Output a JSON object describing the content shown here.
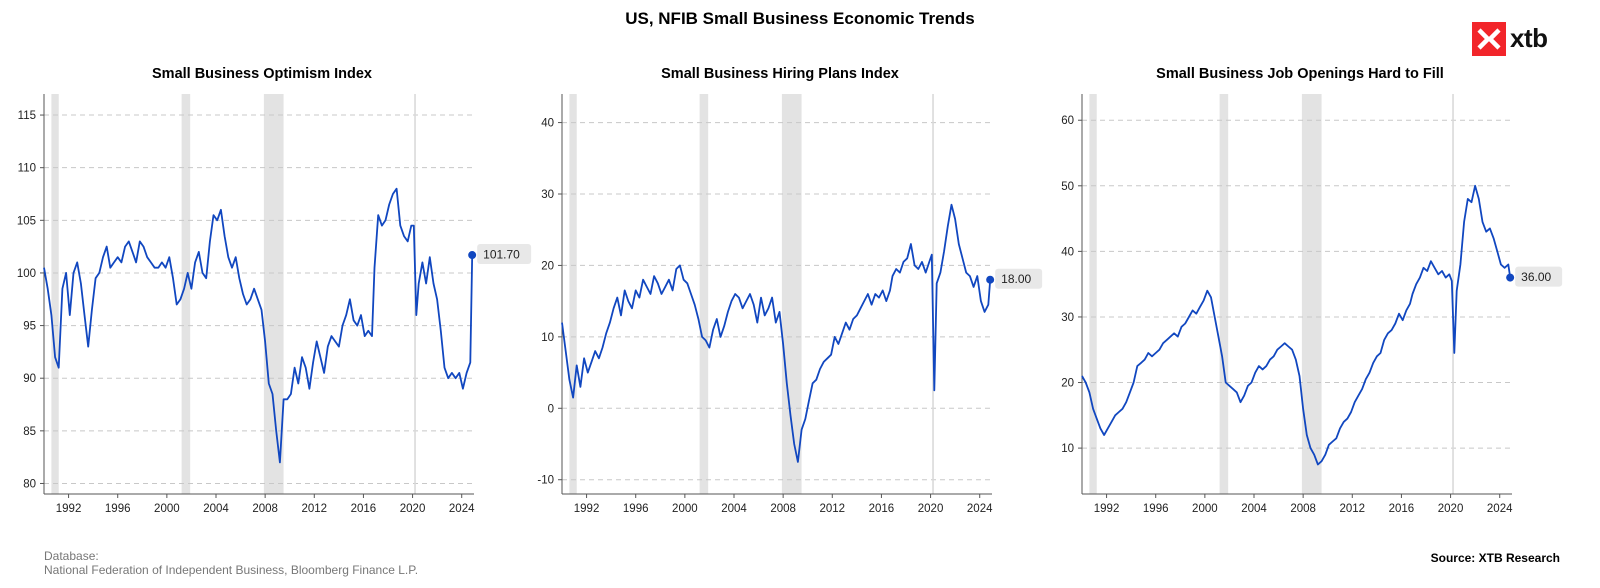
{
  "title": "US, NFIB Small Business Economic Trends",
  "logo": {
    "text": "xtb",
    "color": "#f2252a"
  },
  "footer": {
    "database_label": "Database:",
    "database_sources": "National Federation of Independent Business, Bloomberg Finance L.P.",
    "source": "Source: XTB Research"
  },
  "colors": {
    "line": "#1147c0",
    "recession": "#e3e3e3",
    "grid": "#c8c8c8",
    "label_bg": "#e8e8e8"
  },
  "chart_data": [
    {
      "type": "line",
      "title": "Small Business Optimism Index",
      "xlabel": "",
      "ylabel": "",
      "xlim": [
        1990,
        2025
      ],
      "ylim": [
        79,
        117
      ],
      "yticks": [
        80,
        85,
        90,
        95,
        100,
        105,
        110,
        115
      ],
      "xticks": [
        1992,
        1996,
        2000,
        2004,
        2008,
        2012,
        2016,
        2020,
        2024
      ],
      "grid": "horizontal dashed",
      "recessions": [
        [
          1990.6,
          1991.2
        ],
        [
          2001.2,
          2001.9
        ],
        [
          2007.9,
          2009.5
        ]
      ],
      "vline": 2020.2,
      "last_value_label": "101.70",
      "series": [
        {
          "x": [
            1990.0,
            1990.3,
            1990.6,
            1990.9,
            1991.2,
            1991.5,
            1991.8,
            1992.1,
            1992.4,
            1992.7,
            1993.0,
            1993.3,
            1993.6,
            1993.9,
            1994.2,
            1994.5,
            1994.8,
            1995.1,
            1995.4,
            1995.7,
            1996.0,
            1996.3,
            1996.6,
            1996.9,
            1997.2,
            1997.5,
            1997.8,
            1998.1,
            1998.4,
            1998.7,
            1999.0,
            1999.3,
            1999.6,
            1999.9,
            2000.2,
            2000.5,
            2000.8,
            2001.1,
            2001.4,
            2001.7,
            2002.0,
            2002.3,
            2002.6,
            2002.9,
            2003.2,
            2003.5,
            2003.8,
            2004.1,
            2004.4,
            2004.7,
            2005.0,
            2005.3,
            2005.6,
            2005.9,
            2006.2,
            2006.5,
            2006.8,
            2007.1,
            2007.4,
            2007.7,
            2008.0,
            2008.3,
            2008.6,
            2008.9,
            2009.2,
            2009.5,
            2009.8,
            2010.1,
            2010.4,
            2010.7,
            2011.0,
            2011.3,
            2011.6,
            2011.9,
            2012.2,
            2012.5,
            2012.8,
            2013.1,
            2013.4,
            2013.7,
            2014.0,
            2014.3,
            2014.6,
            2014.9,
            2015.2,
            2015.5,
            2015.8,
            2016.1,
            2016.4,
            2016.7,
            2016.9,
            2017.2,
            2017.5,
            2017.8,
            2018.1,
            2018.4,
            2018.7,
            2019.0,
            2019.3,
            2019.6,
            2019.9,
            2020.1,
            2020.3,
            2020.5,
            2020.8,
            2021.1,
            2021.4,
            2021.7,
            2022.0,
            2022.3,
            2022.6,
            2022.9,
            2023.2,
            2023.5,
            2023.8,
            2024.1,
            2024.4,
            2024.7,
            2024.85
          ],
          "y": [
            100.5,
            98.5,
            96.0,
            92.0,
            91.0,
            98.5,
            100.0,
            96.0,
            100.0,
            101.0,
            99.0,
            96.0,
            93.0,
            96.5,
            99.5,
            100.0,
            101.5,
            102.5,
            100.5,
            101.0,
            101.5,
            101.0,
            102.5,
            103.0,
            102.0,
            101.0,
            103.0,
            102.5,
            101.5,
            101.0,
            100.5,
            100.5,
            101.0,
            100.5,
            101.5,
            99.5,
            97.0,
            97.5,
            98.5,
            100.0,
            98.5,
            101.0,
            102.0,
            100.0,
            99.5,
            103.0,
            105.5,
            105.0,
            106.0,
            103.5,
            101.5,
            100.5,
            101.5,
            99.5,
            98.0,
            97.0,
            97.5,
            98.5,
            97.5,
            96.5,
            93.5,
            89.5,
            88.5,
            85.0,
            82.0,
            88.0,
            88.0,
            88.5,
            91.0,
            89.5,
            92.0,
            91.0,
            89.0,
            91.5,
            93.5,
            92.0,
            90.5,
            93.0,
            94.0,
            93.5,
            93.0,
            95.0,
            96.0,
            97.5,
            95.5,
            95.0,
            96.0,
            94.0,
            94.5,
            94.0,
            100.5,
            105.5,
            104.5,
            105.0,
            106.5,
            107.5,
            108.0,
            104.5,
            103.5,
            103.0,
            104.5,
            104.5,
            96.0,
            99.0,
            101.0,
            99.0,
            101.5,
            99.0,
            97.5,
            94.5,
            91.0,
            90.0,
            90.5,
            90.0,
            90.5,
            89.0,
            90.5,
            91.5,
            101.7
          ]
        }
      ]
    },
    {
      "type": "line",
      "title": "Small Business Hiring Plans Index",
      "xlabel": "",
      "ylabel": "",
      "xlim": [
        1990,
        2025
      ],
      "ylim": [
        -12,
        44
      ],
      "yticks": [
        -10,
        0,
        10,
        20,
        30,
        40
      ],
      "xticks": [
        1992,
        1996,
        2000,
        2004,
        2008,
        2012,
        2016,
        2020,
        2024
      ],
      "grid": "horizontal dashed",
      "recessions": [
        [
          1990.6,
          1991.2
        ],
        [
          2001.2,
          2001.9
        ],
        [
          2007.9,
          2009.5
        ]
      ],
      "vline": 2020.2,
      "last_value_label": "18.00",
      "series": [
        {
          "x": [
            1990.0,
            1990.3,
            1990.6,
            1990.9,
            1991.2,
            1991.5,
            1991.8,
            1992.1,
            1992.4,
            1992.7,
            1993.0,
            1993.3,
            1993.6,
            1993.9,
            1994.2,
            1994.5,
            1994.8,
            1995.1,
            1995.4,
            1995.7,
            1996.0,
            1996.3,
            1996.6,
            1996.9,
            1997.2,
            1997.5,
            1997.8,
            1998.1,
            1998.4,
            1998.7,
            1999.0,
            1999.3,
            1999.6,
            1999.9,
            2000.2,
            2000.5,
            2000.8,
            2001.1,
            2001.4,
            2001.7,
            2002.0,
            2002.3,
            2002.6,
            2002.9,
            2003.2,
            2003.5,
            2003.8,
            2004.1,
            2004.4,
            2004.7,
            2005.0,
            2005.3,
            2005.6,
            2005.9,
            2006.2,
            2006.5,
            2006.8,
            2007.1,
            2007.4,
            2007.7,
            2008.0,
            2008.3,
            2008.6,
            2008.9,
            2009.2,
            2009.5,
            2009.8,
            2010.1,
            2010.4,
            2010.7,
            2011.0,
            2011.3,
            2011.6,
            2011.9,
            2012.2,
            2012.5,
            2012.8,
            2013.1,
            2013.4,
            2013.7,
            2014.0,
            2014.3,
            2014.6,
            2014.9,
            2015.2,
            2015.5,
            2015.8,
            2016.1,
            2016.4,
            2016.7,
            2016.9,
            2017.2,
            2017.5,
            2017.8,
            2018.1,
            2018.4,
            2018.7,
            2019.0,
            2019.3,
            2019.6,
            2019.9,
            2020.1,
            2020.3,
            2020.5,
            2020.8,
            2021.1,
            2021.4,
            2021.7,
            2022.0,
            2022.3,
            2022.6,
            2022.9,
            2023.2,
            2023.5,
            2023.8,
            2024.1,
            2024.4,
            2024.7,
            2024.85
          ],
          "y": [
            12.0,
            8.0,
            4.0,
            1.5,
            6.0,
            3.0,
            7.0,
            5.0,
            6.5,
            8.0,
            7.0,
            8.5,
            10.5,
            12.0,
            14.0,
            15.5,
            13.0,
            16.5,
            15.0,
            14.0,
            16.5,
            15.5,
            18.0,
            17.0,
            16.0,
            18.5,
            17.5,
            16.0,
            17.0,
            18.0,
            16.5,
            19.5,
            20.0,
            18.0,
            17.5,
            16.0,
            14.5,
            12.5,
            10.0,
            9.5,
            8.5,
            11.0,
            12.5,
            10.0,
            11.5,
            13.5,
            15.0,
            16.0,
            15.5,
            14.0,
            15.0,
            16.0,
            14.5,
            12.0,
            15.5,
            13.0,
            14.0,
            15.5,
            12.0,
            13.5,
            9.0,
            3.5,
            -1.0,
            -5.0,
            -7.5,
            -3.0,
            -1.5,
            1.0,
            3.5,
            4.0,
            5.5,
            6.5,
            7.0,
            7.5,
            10.0,
            9.0,
            10.5,
            12.0,
            11.0,
            12.5,
            13.0,
            14.0,
            15.0,
            16.0,
            14.5,
            16.0,
            15.5,
            16.5,
            15.0,
            16.5,
            18.5,
            19.5,
            19.0,
            20.5,
            21.0,
            23.0,
            20.0,
            19.5,
            20.5,
            19.0,
            20.5,
            21.5,
            2.5,
            17.5,
            19.0,
            22.0,
            25.5,
            28.5,
            26.5,
            23.0,
            21.0,
            19.0,
            18.5,
            17.0,
            18.5,
            15.0,
            13.5,
            14.5,
            18.0
          ]
        }
      ]
    },
    {
      "type": "line",
      "title": "Small Business Job Openings Hard to Fill",
      "xlabel": "",
      "ylabel": "",
      "xlim": [
        1990,
        2025
      ],
      "ylim": [
        3,
        64
      ],
      "yticks": [
        10,
        20,
        30,
        40,
        50,
        60
      ],
      "xticks": [
        1992,
        1996,
        2000,
        2004,
        2008,
        2012,
        2016,
        2020,
        2024
      ],
      "grid": "horizontal dashed",
      "recessions": [
        [
          1990.6,
          1991.2
        ],
        [
          2001.2,
          2001.9
        ],
        [
          2007.9,
          2009.5
        ]
      ],
      "vline": 2020.2,
      "last_value_label": "36.00",
      "series": [
        {
          "x": [
            1990.0,
            1990.3,
            1990.6,
            1990.9,
            1991.2,
            1991.5,
            1991.8,
            1992.1,
            1992.4,
            1992.7,
            1993.0,
            1993.3,
            1993.6,
            1993.9,
            1994.2,
            1994.5,
            1994.8,
            1995.1,
            1995.4,
            1995.7,
            1996.0,
            1996.3,
            1996.6,
            1996.9,
            1997.2,
            1997.5,
            1997.8,
            1998.1,
            1998.4,
            1998.7,
            1999.0,
            1999.3,
            1999.6,
            1999.9,
            2000.2,
            2000.5,
            2000.8,
            2001.1,
            2001.4,
            2001.7,
            2002.0,
            2002.3,
            2002.6,
            2002.9,
            2003.2,
            2003.5,
            2003.8,
            2004.1,
            2004.4,
            2004.7,
            2005.0,
            2005.3,
            2005.6,
            2005.9,
            2006.2,
            2006.5,
            2006.8,
            2007.1,
            2007.4,
            2007.7,
            2008.0,
            2008.3,
            2008.6,
            2008.9,
            2009.2,
            2009.5,
            2009.8,
            2010.1,
            2010.4,
            2010.7,
            2011.0,
            2011.3,
            2011.6,
            2011.9,
            2012.2,
            2012.5,
            2012.8,
            2013.1,
            2013.4,
            2013.7,
            2014.0,
            2014.3,
            2014.6,
            2014.9,
            2015.2,
            2015.5,
            2015.8,
            2016.1,
            2016.4,
            2016.7,
            2016.9,
            2017.2,
            2017.5,
            2017.8,
            2018.1,
            2018.4,
            2018.7,
            2019.0,
            2019.3,
            2019.6,
            2019.9,
            2020.1,
            2020.3,
            2020.5,
            2020.8,
            2021.1,
            2021.4,
            2021.7,
            2022.0,
            2022.3,
            2022.6,
            2022.9,
            2023.2,
            2023.5,
            2023.8,
            2024.1,
            2024.4,
            2024.7,
            2024.85
          ],
          "y": [
            21.0,
            20.0,
            18.5,
            16.0,
            14.5,
            13.0,
            12.0,
            13.0,
            14.0,
            15.0,
            15.5,
            16.0,
            17.0,
            18.5,
            20.0,
            22.5,
            23.0,
            23.5,
            24.5,
            24.0,
            24.5,
            25.0,
            26.0,
            26.5,
            27.0,
            27.5,
            27.0,
            28.5,
            29.0,
            30.0,
            31.0,
            30.5,
            31.5,
            32.5,
            34.0,
            33.0,
            30.0,
            27.0,
            24.0,
            20.0,
            19.5,
            19.0,
            18.5,
            17.0,
            18.0,
            19.5,
            20.0,
            21.5,
            22.5,
            22.0,
            22.5,
            23.5,
            24.0,
            25.0,
            25.5,
            26.0,
            25.5,
            25.0,
            23.5,
            21.0,
            16.0,
            12.0,
            10.0,
            9.0,
            7.5,
            8.0,
            9.0,
            10.5,
            11.0,
            11.5,
            13.0,
            14.0,
            14.5,
            15.5,
            17.0,
            18.0,
            19.0,
            20.5,
            21.5,
            23.0,
            24.0,
            24.5,
            26.5,
            27.5,
            28.0,
            29.0,
            30.5,
            29.5,
            31.0,
            32.0,
            33.5,
            35.0,
            36.0,
            37.5,
            37.0,
            38.5,
            37.5,
            36.5,
            37.0,
            36.0,
            36.5,
            35.5,
            24.5,
            34.0,
            38.0,
            44.5,
            48.0,
            47.5,
            50.0,
            48.0,
            44.5,
            43.0,
            43.5,
            42.0,
            40.0,
            38.0,
            37.5,
            38.0,
            36.0
          ]
        }
      ]
    }
  ]
}
